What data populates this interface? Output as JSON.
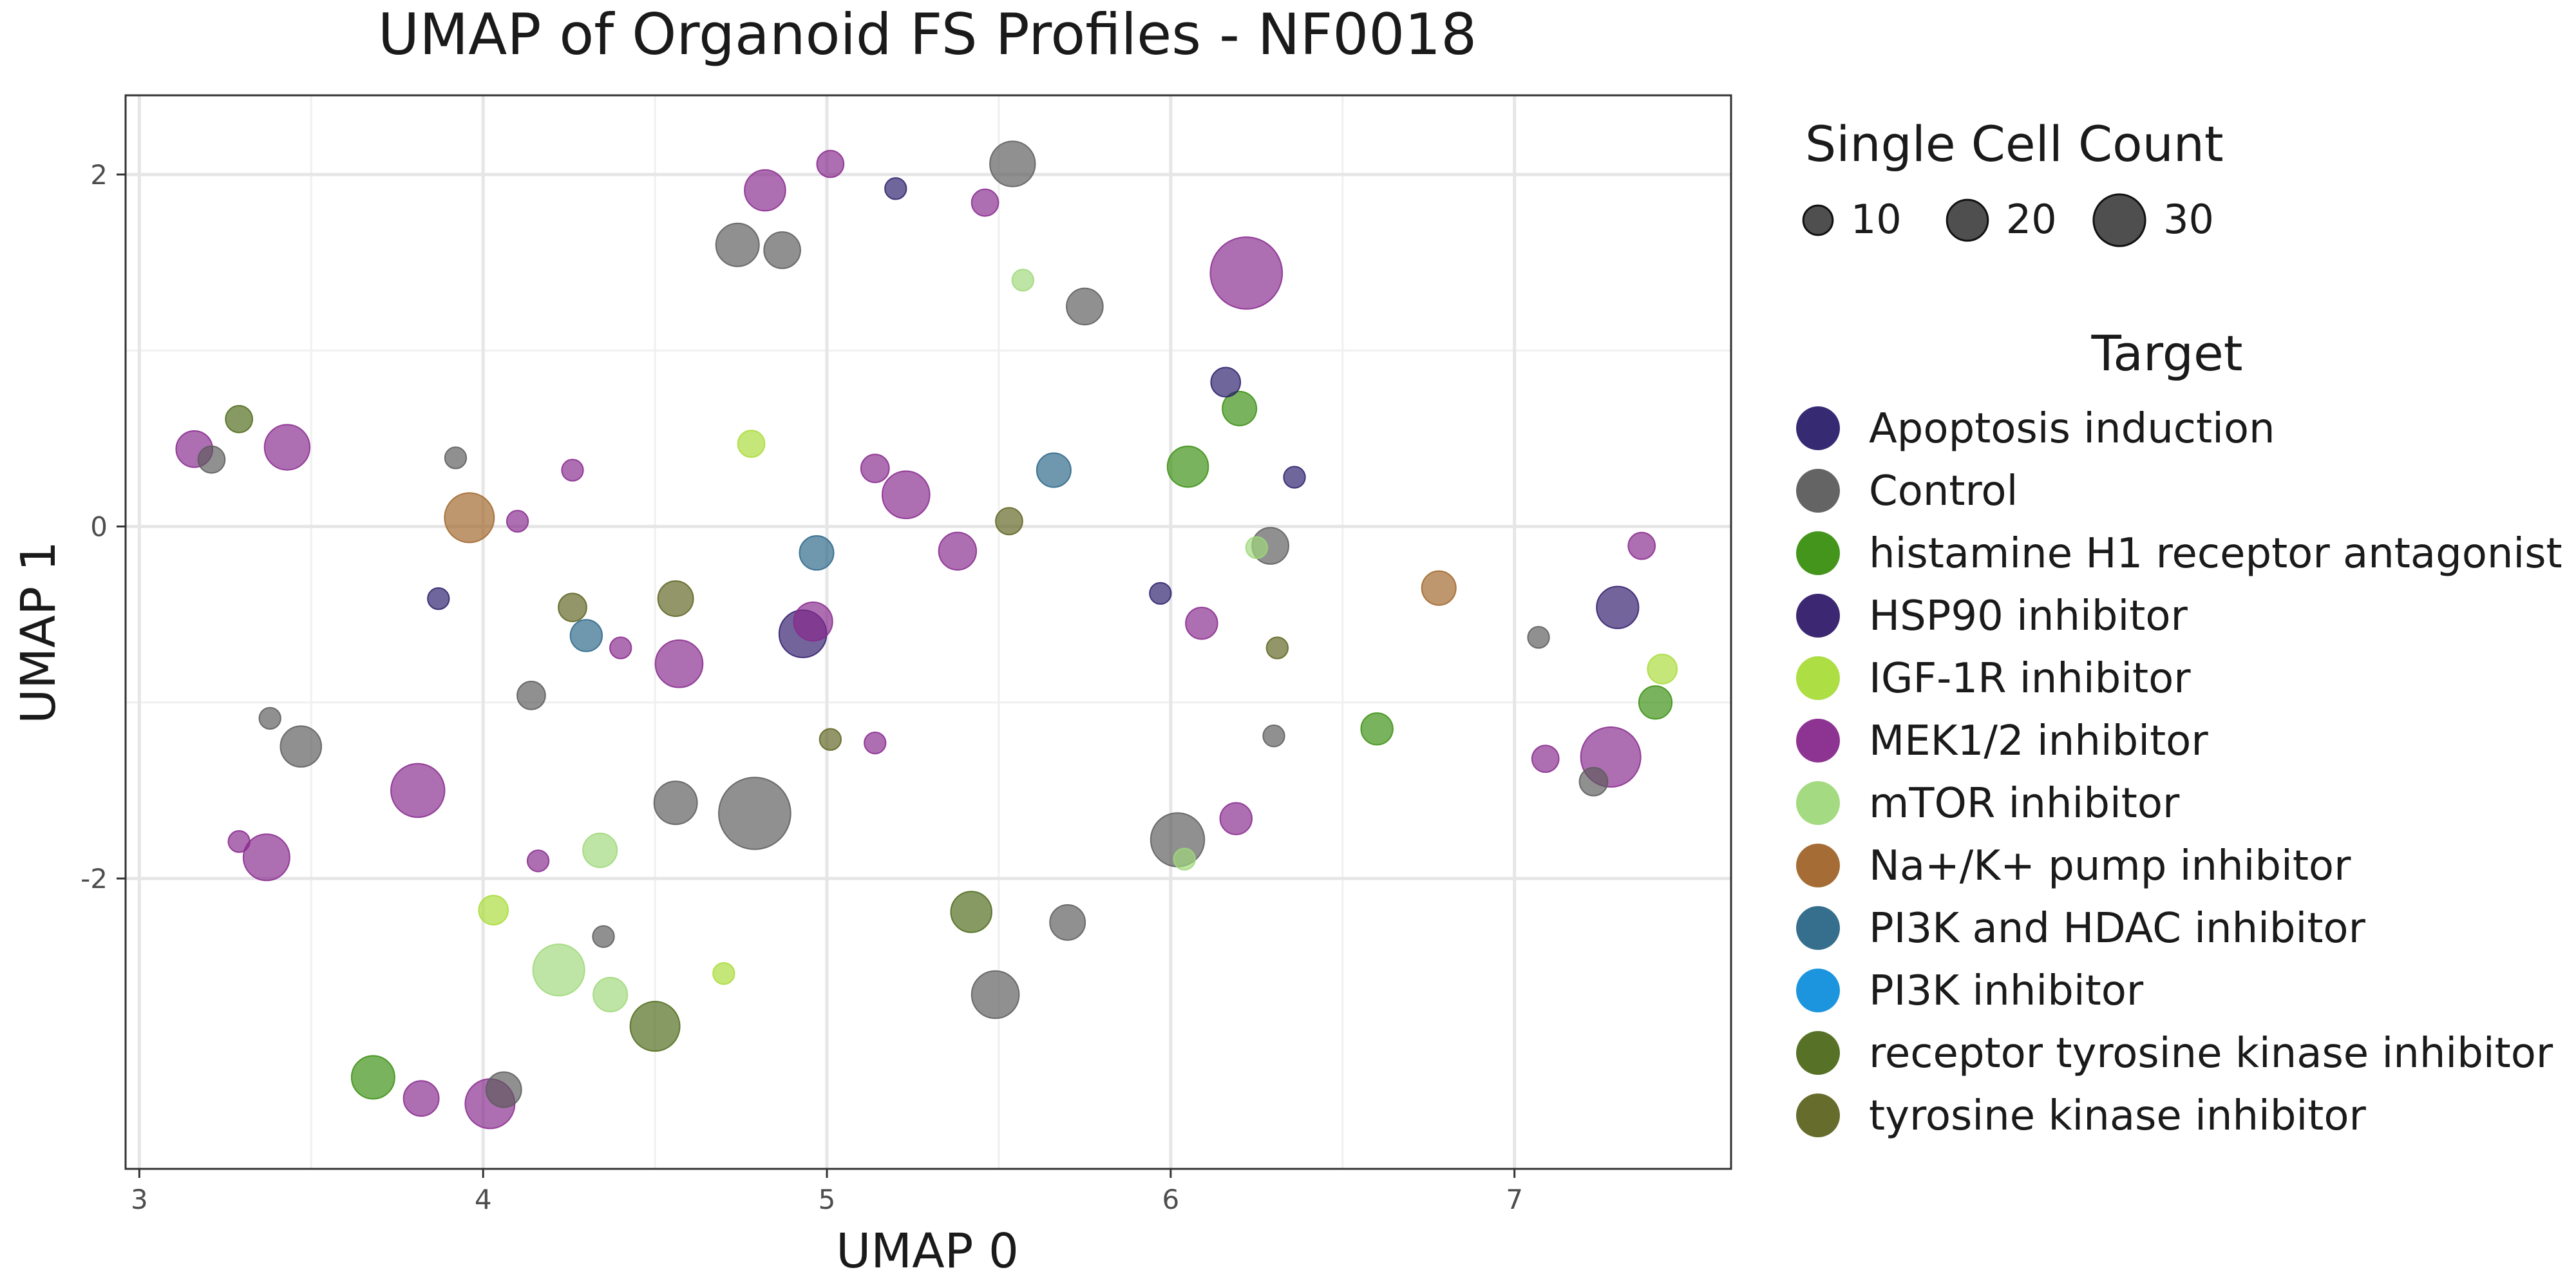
{
  "chart_data": {
    "type": "scatter",
    "title": "UMAP of Organoid FS Profiles - NF0018",
    "xlabel": "UMAP 0",
    "ylabel": "UMAP 1",
    "xlim": [
      2.96,
      7.63
    ],
    "ylim": [
      -3.65,
      2.45
    ],
    "xticks": [
      3,
      4,
      5,
      6,
      7
    ],
    "yticks": [
      2,
      0,
      -2
    ],
    "xtick_labels": [
      "3",
      "4",
      "5",
      "6",
      "7"
    ],
    "ytick_labels": [
      "2",
      "0",
      "-2"
    ],
    "grid": true,
    "size_legend": {
      "title": "Single Cell Count",
      "values": [
        10,
        20,
        30
      ],
      "labels": [
        "10",
        "20",
        "30"
      ]
    },
    "color_legend": {
      "title": "Target",
      "placement": "right"
    },
    "series": [
      {
        "name": "Apoptosis induction",
        "color": "#2b1f6b",
        "points": [
          {
            "x": 6.16,
            "y": 0.82,
            "n": 10
          },
          {
            "x": 5.2,
            "y": 1.92,
            "n": 4
          },
          {
            "x": 6.36,
            "y": 0.28,
            "n": 4
          },
          {
            "x": 3.87,
            "y": -0.41,
            "n": 4
          },
          {
            "x": 5.97,
            "y": -0.38,
            "n": 4
          }
        ]
      },
      {
        "name": "Control",
        "color": "#5c5c5c",
        "points": [
          {
            "x": 5.54,
            "y": 2.06,
            "n": 24
          },
          {
            "x": 4.74,
            "y": 1.6,
            "n": 22
          },
          {
            "x": 4.87,
            "y": 1.57,
            "n": 16
          },
          {
            "x": 5.75,
            "y": 1.25,
            "n": 16
          },
          {
            "x": 3.21,
            "y": 0.38,
            "n": 8
          },
          {
            "x": 3.92,
            "y": 0.39,
            "n": 4
          },
          {
            "x": 6.29,
            "y": -0.11,
            "n": 16
          },
          {
            "x": 4.14,
            "y": -0.96,
            "n": 9
          },
          {
            "x": 3.38,
            "y": -1.09,
            "n": 4
          },
          {
            "x": 3.47,
            "y": -1.25,
            "n": 20
          },
          {
            "x": 4.56,
            "y": -1.57,
            "n": 22
          },
          {
            "x": 4.79,
            "y": -1.63,
            "n": 50
          },
          {
            "x": 6.02,
            "y": -1.78,
            "n": 32
          },
          {
            "x": 5.7,
            "y": -2.25,
            "n": 15
          },
          {
            "x": 4.35,
            "y": -2.33,
            "n": 4
          },
          {
            "x": 5.49,
            "y": -2.66,
            "n": 26
          },
          {
            "x": 4.06,
            "y": -3.2,
            "n": 15
          },
          {
            "x": 6.3,
            "y": -1.19,
            "n": 4
          },
          {
            "x": 7.07,
            "y": -0.63,
            "n": 4
          },
          {
            "x": 7.23,
            "y": -1.45,
            "n": 9
          }
        ]
      },
      {
        "name": "histamine H1 receptor antagonist",
        "color": "#3a8f10",
        "points": [
          {
            "x": 6.2,
            "y": 0.67,
            "n": 14
          },
          {
            "x": 6.05,
            "y": 0.34,
            "n": 20
          },
          {
            "x": 6.6,
            "y": -1.15,
            "n": 12
          },
          {
            "x": 7.41,
            "y": -1.0,
            "n": 13
          },
          {
            "x": 3.68,
            "y": -3.13,
            "n": 22
          }
        ]
      },
      {
        "name": "HSP90 inhibitor",
        "color": "#311b6b",
        "points": [
          {
            "x": 4.93,
            "y": -0.61,
            "n": 26
          },
          {
            "x": 7.3,
            "y": -0.46,
            "n": 21
          }
        ]
      },
      {
        "name": "IGF-1R inhibitor",
        "color": "#a9dc3a",
        "points": [
          {
            "x": 4.78,
            "y": 0.47,
            "n": 8
          },
          {
            "x": 4.03,
            "y": -2.18,
            "n": 10
          },
          {
            "x": 4.7,
            "y": -2.54,
            "n": 4
          },
          {
            "x": 7.43,
            "y": -0.81,
            "n": 10
          }
        ]
      },
      {
        "name": "MEK1/2 inhibitor",
        "color": "#87298d",
        "points": [
          {
            "x": 5.01,
            "y": 2.06,
            "n": 8
          },
          {
            "x": 4.82,
            "y": 1.91,
            "n": 20
          },
          {
            "x": 5.46,
            "y": 1.84,
            "n": 8
          },
          {
            "x": 6.22,
            "y": 1.44,
            "n": 50
          },
          {
            "x": 3.16,
            "y": 0.44,
            "n": 16
          },
          {
            "x": 3.43,
            "y": 0.45,
            "n": 24
          },
          {
            "x": 4.26,
            "y": 0.32,
            "n": 4
          },
          {
            "x": 5.14,
            "y": 0.33,
            "n": 9
          },
          {
            "x": 5.23,
            "y": 0.18,
            "n": 26
          },
          {
            "x": 4.1,
            "y": 0.03,
            "n": 4
          },
          {
            "x": 5.38,
            "y": -0.14,
            "n": 17
          },
          {
            "x": 4.96,
            "y": -0.54,
            "n": 18
          },
          {
            "x": 6.09,
            "y": -0.55,
            "n": 12
          },
          {
            "x": 4.4,
            "y": -0.69,
            "n": 4
          },
          {
            "x": 4.57,
            "y": -0.78,
            "n": 26
          },
          {
            "x": 5.14,
            "y": -1.23,
            "n": 4
          },
          {
            "x": 3.81,
            "y": -1.5,
            "n": 32
          },
          {
            "x": 6.19,
            "y": -1.66,
            "n": 12
          },
          {
            "x": 3.29,
            "y": -1.79,
            "n": 4
          },
          {
            "x": 3.37,
            "y": -1.88,
            "n": 25
          },
          {
            "x": 4.16,
            "y": -1.9,
            "n": 4
          },
          {
            "x": 3.82,
            "y": -3.25,
            "n": 15
          },
          {
            "x": 4.02,
            "y": -3.28,
            "n": 28
          },
          {
            "x": 7.37,
            "y": -0.11,
            "n": 8
          },
          {
            "x": 7.09,
            "y": -1.32,
            "n": 8
          },
          {
            "x": 7.28,
            "y": -1.31,
            "n": 38
          }
        ]
      },
      {
        "name": "mTOR inhibitor",
        "color": "#9fd87a",
        "points": [
          {
            "x": 5.57,
            "y": 1.4,
            "n": 4
          },
          {
            "x": 6.25,
            "y": -0.12,
            "n": 4
          },
          {
            "x": 4.34,
            "y": -1.84,
            "n": 14
          },
          {
            "x": 4.22,
            "y": -2.52,
            "n": 30
          },
          {
            "x": 4.37,
            "y": -2.66,
            "n": 14
          },
          {
            "x": 6.04,
            "y": -1.89,
            "n": 4
          }
        ]
      },
      {
        "name": "Na+/K+ pump inhibitor",
        "color": "#a0652a",
        "points": [
          {
            "x": 3.96,
            "y": 0.05,
            "n": 28
          },
          {
            "x": 6.78,
            "y": -0.35,
            "n": 14
          }
        ]
      },
      {
        "name": "PI3K and HDAC inhibitor",
        "color": "#2b6688",
        "points": [
          {
            "x": 5.66,
            "y": 0.32,
            "n": 14
          },
          {
            "x": 4.97,
            "y": -0.15,
            "n": 14
          },
          {
            "x": 4.3,
            "y": -0.62,
            "n": 12
          }
        ]
      },
      {
        "name": "PI3K inhibitor",
        "color": "#108fdc",
        "points": []
      },
      {
        "name": "receptor tyrosine kinase inhibitor",
        "color": "#4e6a1a",
        "points": [
          {
            "x": 4.5,
            "y": -2.84,
            "n": 28
          },
          {
            "x": 5.42,
            "y": -2.19,
            "n": 20
          },
          {
            "x": 3.29,
            "y": 0.61,
            "n": 8
          }
        ]
      },
      {
        "name": "tyrosine kinase inhibitor",
        "color": "#5e6420",
        "points": [
          {
            "x": 4.56,
            "y": -0.41,
            "n": 15
          },
          {
            "x": 4.26,
            "y": -0.46,
            "n": 9
          },
          {
            "x": 5.53,
            "y": 0.03,
            "n": 8
          },
          {
            "x": 5.01,
            "y": -1.21,
            "n": 4
          },
          {
            "x": 6.31,
            "y": -0.69,
            "n": 4
          }
        ]
      }
    ]
  }
}
